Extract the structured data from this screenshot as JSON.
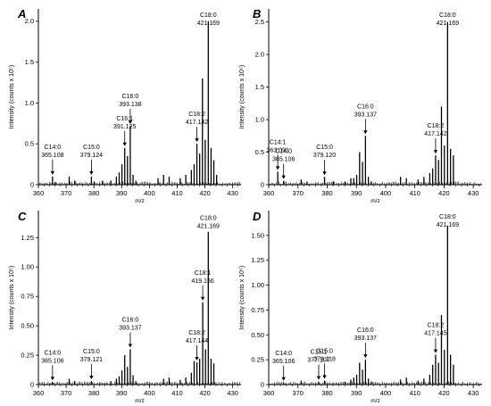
{
  "figure": {
    "xlabel": "m/z"
  },
  "chart_data": [
    {
      "panel": "A",
      "type": "bar",
      "xlabel": "m/z",
      "ylabel": "Intensity (counts x 10⁵)",
      "xlim": [
        360,
        433
      ],
      "ylim": [
        0,
        2.15
      ],
      "xticks": [
        360,
        370,
        380,
        390,
        400,
        410,
        420,
        430
      ],
      "xtick_labels": [
        "360",
        "370",
        "380",
        "390",
        "400",
        "410",
        "420",
        "430"
      ],
      "yticks": [
        0,
        0.5,
        1.0,
        1.5,
        2.0
      ],
      "ytick_labels": [
        "0",
        "0.5",
        "1.0",
        "1.5",
        "2.0"
      ],
      "x": [
        365.1,
        366.1,
        371.1,
        373.1,
        379.1,
        380.1,
        383.1,
        386.1,
        388.1,
        389.1,
        390.1,
        391.1,
        392.1,
        393.1,
        394.1,
        395.1,
        403.1,
        405.1,
        407.1,
        411.1,
        413.1,
        415.1,
        416.1,
        417.1,
        418.1,
        419.1,
        420.1,
        421.2,
        422.2,
        423.2,
        424.2
      ],
      "values": [
        0.1,
        0.03,
        0.1,
        0.05,
        0.1,
        0.04,
        0.05,
        0.05,
        0.1,
        0.15,
        0.25,
        0.45,
        0.35,
        0.72,
        0.12,
        0.05,
        0.08,
        0.12,
        0.1,
        0.08,
        0.12,
        0.18,
        0.25,
        0.5,
        0.38,
        1.3,
        0.55,
        2.0,
        0.45,
        0.3,
        0.12
      ],
      "annotations": [
        {
          "label": "C14:0",
          "value": "365.108",
          "x": 365.1,
          "y": 0.1
        },
        {
          "label": "C15:0",
          "value": "379.124",
          "x": 379.1,
          "y": 0.1
        },
        {
          "label": "C16:1",
          "value": "391.125",
          "x": 391.1,
          "y": 0.45
        },
        {
          "label": "C16:0",
          "value": "393.138",
          "x": 393.1,
          "y": 0.72
        },
        {
          "label": "C18:2",
          "value": "417.142",
          "x": 417.1,
          "y": 0.5
        },
        {
          "label": "C18:0",
          "value": "421.169",
          "x": 421.2,
          "y": 2.0
        }
      ]
    },
    {
      "panel": "B",
      "type": "bar",
      "xlabel": "m/z",
      "ylabel": "Intensity (counts x 10⁵)",
      "xlim": [
        360,
        433
      ],
      "ylim": [
        0,
        2.7
      ],
      "xticks": [
        360,
        370,
        380,
        390,
        400,
        410,
        420,
        430
      ],
      "xtick_labels": [
        "360",
        "370",
        "380",
        "390",
        "400",
        "410",
        "420",
        "430"
      ],
      "yticks": [
        0,
        0.5,
        1.0,
        1.5,
        2.0,
        2.5
      ],
      "ytick_labels": [
        "0",
        "0.5",
        "1.0",
        "1.5",
        "2.0",
        "2.5"
      ],
      "x": [
        363.1,
        365.1,
        371.1,
        373.1,
        379.1,
        382.1,
        386.1,
        388.1,
        389.1,
        390.1,
        391.1,
        392.1,
        393.1,
        394.1,
        395.1,
        405.1,
        407.1,
        411.1,
        413.1,
        415.1,
        416.1,
        417.1,
        418.1,
        419.1,
        420.1,
        421.2,
        422.2,
        423.2
      ],
      "values": [
        0.2,
        0.06,
        0.08,
        0.05,
        0.12,
        0.05,
        0.05,
        0.1,
        0.1,
        0.15,
        0.5,
        0.35,
        0.75,
        0.12,
        0.05,
        0.12,
        0.1,
        0.08,
        0.12,
        0.18,
        0.25,
        0.45,
        0.38,
        1.2,
        0.6,
        2.5,
        0.55,
        0.45
      ],
      "annotations": [
        {
          "label": "C14:1",
          "value": "363.091",
          "x": 363.1,
          "y": 0.2
        },
        {
          "label": "C14:0",
          "value": "365.106",
          "x": 365.1,
          "y": 0.06
        },
        {
          "label": "C15:0",
          "value": "379.120",
          "x": 379.1,
          "y": 0.12
        },
        {
          "label": "C16:0",
          "value": "393.137",
          "x": 393.1,
          "y": 0.75
        },
        {
          "label": "C18:2",
          "value": "417.142",
          "x": 417.1,
          "y": 0.45
        },
        {
          "label": "C18:0",
          "value": "421.169",
          "x": 421.2,
          "y": 2.5
        }
      ]
    },
    {
      "panel": "C",
      "type": "bar",
      "xlabel": "m/z",
      "ylabel": "Intensity (counts x 10⁵)",
      "xlim": [
        360,
        433
      ],
      "ylim": [
        0,
        1.48
      ],
      "xticks": [
        360,
        370,
        380,
        390,
        400,
        410,
        420,
        430
      ],
      "xtick_labels": [
        "360",
        "370",
        "380",
        "390",
        "400",
        "410",
        "420",
        "430"
      ],
      "yticks": [
        0,
        0.25,
        0.5,
        0.75,
        1.0,
        1.25
      ],
      "ytick_labels": [
        "0",
        "0.25",
        "0.50",
        "0.75",
        "1.00",
        "1.25"
      ],
      "x": [
        365.1,
        371.1,
        373.1,
        379.1,
        386.1,
        388.1,
        389.1,
        390.1,
        391.1,
        392.1,
        393.1,
        394.1,
        395.1,
        405.1,
        407.1,
        411.1,
        413.1,
        415.1,
        416.1,
        417.1,
        418.1,
        419.2,
        420.2,
        421.2,
        422.2,
        423.2
      ],
      "values": [
        0.02,
        0.05,
        0.03,
        0.03,
        0.03,
        0.05,
        0.07,
        0.12,
        0.25,
        0.15,
        0.3,
        0.08,
        0.03,
        0.05,
        0.06,
        0.04,
        0.06,
        0.1,
        0.2,
        0.19,
        0.22,
        0.7,
        0.3,
        1.3,
        0.22,
        0.18
      ],
      "annotations": [
        {
          "label": "C14:0",
          "value": "365.106",
          "x": 365.1,
          "y": 0.02
        },
        {
          "label": "C15:0",
          "value": "379.121",
          "x": 379.1,
          "y": 0.03
        },
        {
          "label": "C16:0",
          "value": "393.137",
          "x": 393.1,
          "y": 0.3
        },
        {
          "label": "C18:2",
          "value": "417.144",
          "x": 417.1,
          "y": 0.19
        },
        {
          "label": "C18:1",
          "value": "419.156",
          "x": 419.2,
          "y": 0.7
        },
        {
          "label": "C18:0",
          "value": "421.169",
          "x": 421.2,
          "y": 1.3
        }
      ]
    },
    {
      "panel": "D",
      "type": "bar",
      "xlabel": "m/z",
      "ylabel": "Intensity (counts x 10⁵)",
      "xlim": [
        360,
        433
      ],
      "ylim": [
        0,
        1.75
      ],
      "xticks": [
        360,
        370,
        380,
        390,
        400,
        410,
        420,
        430
      ],
      "xtick_labels": [
        "360",
        "370",
        "380",
        "390",
        "400",
        "410",
        "420",
        "430"
      ],
      "yticks": [
        0,
        0.25,
        0.5,
        0.75,
        1.0,
        1.25,
        1.5
      ],
      "ytick_labels": [
        "0",
        "0.25",
        "0.50",
        "0.75",
        "1.00",
        "1.25",
        "1.50"
      ],
      "x": [
        365.1,
        371.1,
        377.1,
        379.1,
        386.1,
        388.1,
        389.1,
        390.1,
        391.1,
        392.1,
        393.1,
        394.1,
        395.1,
        405.1,
        407.1,
        411.1,
        413.1,
        415.1,
        416.1,
        417.1,
        418.1,
        419.1,
        420.1,
        421.2,
        422.2,
        423.2
      ],
      "values": [
        0.02,
        0.04,
        0.03,
        0.04,
        0.03,
        0.05,
        0.07,
        0.1,
        0.22,
        0.15,
        0.25,
        0.06,
        0.03,
        0.05,
        0.07,
        0.04,
        0.06,
        0.1,
        0.2,
        0.3,
        0.22,
        0.7,
        0.35,
        1.6,
        0.3,
        0.2
      ],
      "annotations": [
        {
          "label": "C14:0",
          "value": "365.106",
          "x": 365.1,
          "y": 0.02
        },
        {
          "label": "C15:1",
          "value": "377.107",
          "x": 377.1,
          "y": 0.03
        },
        {
          "label": "C15:0",
          "value": "379.118",
          "x": 379.1,
          "y": 0.04
        },
        {
          "label": "C16:0",
          "value": "393.137",
          "x": 393.1,
          "y": 0.25
        },
        {
          "label": "C18:2",
          "value": "417.145",
          "x": 417.1,
          "y": 0.3
        },
        {
          "label": "C18:0",
          "value": "421.169",
          "x": 421.2,
          "y": 1.6
        }
      ]
    }
  ]
}
